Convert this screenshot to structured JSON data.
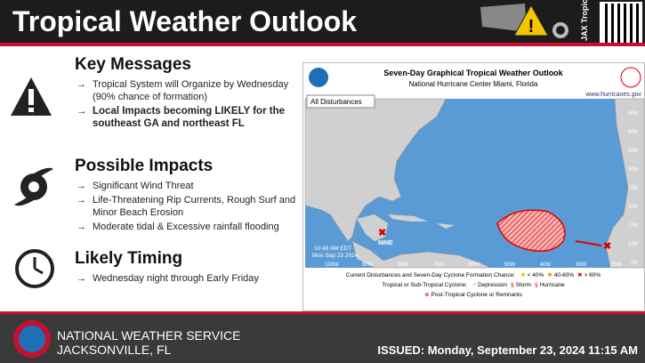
{
  "header": {
    "title": "Tropical Weather Outlook",
    "tag": "JAX Tropical"
  },
  "sections": [
    {
      "title": "Key Messages",
      "bullets": [
        "Tropical System will Organize by Wednesday (90% chance of formation)",
        "Local Impacts becoming LIKELY for the southeast GA and northeast FL"
      ]
    },
    {
      "title": "Possible Impacts",
      "bullets": [
        "Significant Wind Threat",
        "Life-Threatening Rip Currents, Rough Surf and Minor Beach Erosion",
        "Moderate tidal & Excessive rainfall flooding"
      ]
    },
    {
      "title": "Likely Timing",
      "bullets": [
        "Wednesday night through Early Friday"
      ]
    }
  ],
  "map": {
    "title": "Seven-Day Graphical Tropical Weather Outlook",
    "subtitle": "National Hurricane Center  Miami, Florida",
    "url": "www.hurricanes.gov",
    "button": "All Disturbances",
    "time": "10:49 AM EDT",
    "date": "Mon Sep 23 2024",
    "storm": "NINE",
    "lons": [
      "100W",
      "90W",
      "80W",
      "70W",
      "60W",
      "50W",
      "40W",
      "30W",
      "20W"
    ],
    "lats": [
      "45N",
      "40N",
      "35N",
      "30N",
      "25N",
      "20N",
      "15N",
      "10N",
      "5N"
    ],
    "legend": {
      "line1": "Current Disturbances and Seven-Day Cyclone Formation Chance:",
      "low": "< 40%",
      "mid": "40-60%",
      "high": "> 60%",
      "line2": "Tropical or Sub-Tropical Cyclone:",
      "dep": "Depression",
      "storm": "Storm",
      "hurr": "Hurricane",
      "post": "Post-Tropical Cyclone or Remnants"
    }
  },
  "footer": {
    "office": "NATIONAL WEATHER SERVICE",
    "city": "JACKSONVILLE, FL",
    "issued": "ISSUED: Monday, September 23, 2024 11:15 AM"
  }
}
